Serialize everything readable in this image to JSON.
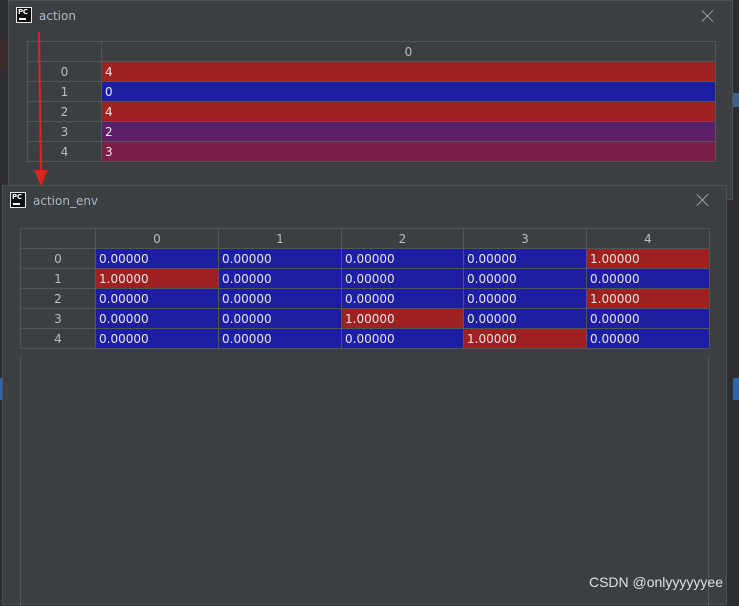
{
  "windows": {
    "action": {
      "title": "action",
      "columns": [
        "0"
      ],
      "rows": [
        {
          "index": "0",
          "values": [
            "4"
          ],
          "colors": [
            "#9e2121"
          ]
        },
        {
          "index": "1",
          "values": [
            "0"
          ],
          "colors": [
            "#1e1ea3"
          ]
        },
        {
          "index": "2",
          "values": [
            "4"
          ],
          "colors": [
            "#9e2121"
          ]
        },
        {
          "index": "3",
          "values": [
            "2"
          ],
          "colors": [
            "#5d1f69"
          ]
        },
        {
          "index": "4",
          "values": [
            "3"
          ],
          "colors": [
            "#7a1e45"
          ]
        }
      ]
    },
    "action_env": {
      "title": "action_env",
      "columns": [
        "0",
        "1",
        "2",
        "3",
        "4"
      ],
      "rows": [
        {
          "index": "0",
          "values": [
            "0.00000",
            "0.00000",
            "0.00000",
            "0.00000",
            "1.00000"
          ]
        },
        {
          "index": "1",
          "values": [
            "1.00000",
            "0.00000",
            "0.00000",
            "0.00000",
            "0.00000"
          ]
        },
        {
          "index": "2",
          "values": [
            "0.00000",
            "0.00000",
            "0.00000",
            "0.00000",
            "1.00000"
          ]
        },
        {
          "index": "3",
          "values": [
            "0.00000",
            "0.00000",
            "1.00000",
            "0.00000",
            "0.00000"
          ]
        },
        {
          "index": "4",
          "values": [
            "0.00000",
            "0.00000",
            "0.00000",
            "1.00000",
            "0.00000"
          ]
        }
      ]
    }
  },
  "colors": {
    "low": "#1e1ea3",
    "high": "#9e2121",
    "arrow": "#e02020"
  },
  "icons": {
    "app_logo": "pycharm-logo-icon",
    "close": "close-icon"
  },
  "app_logo_text": "PC",
  "watermark": "CSDN @onlyyyyyyee"
}
